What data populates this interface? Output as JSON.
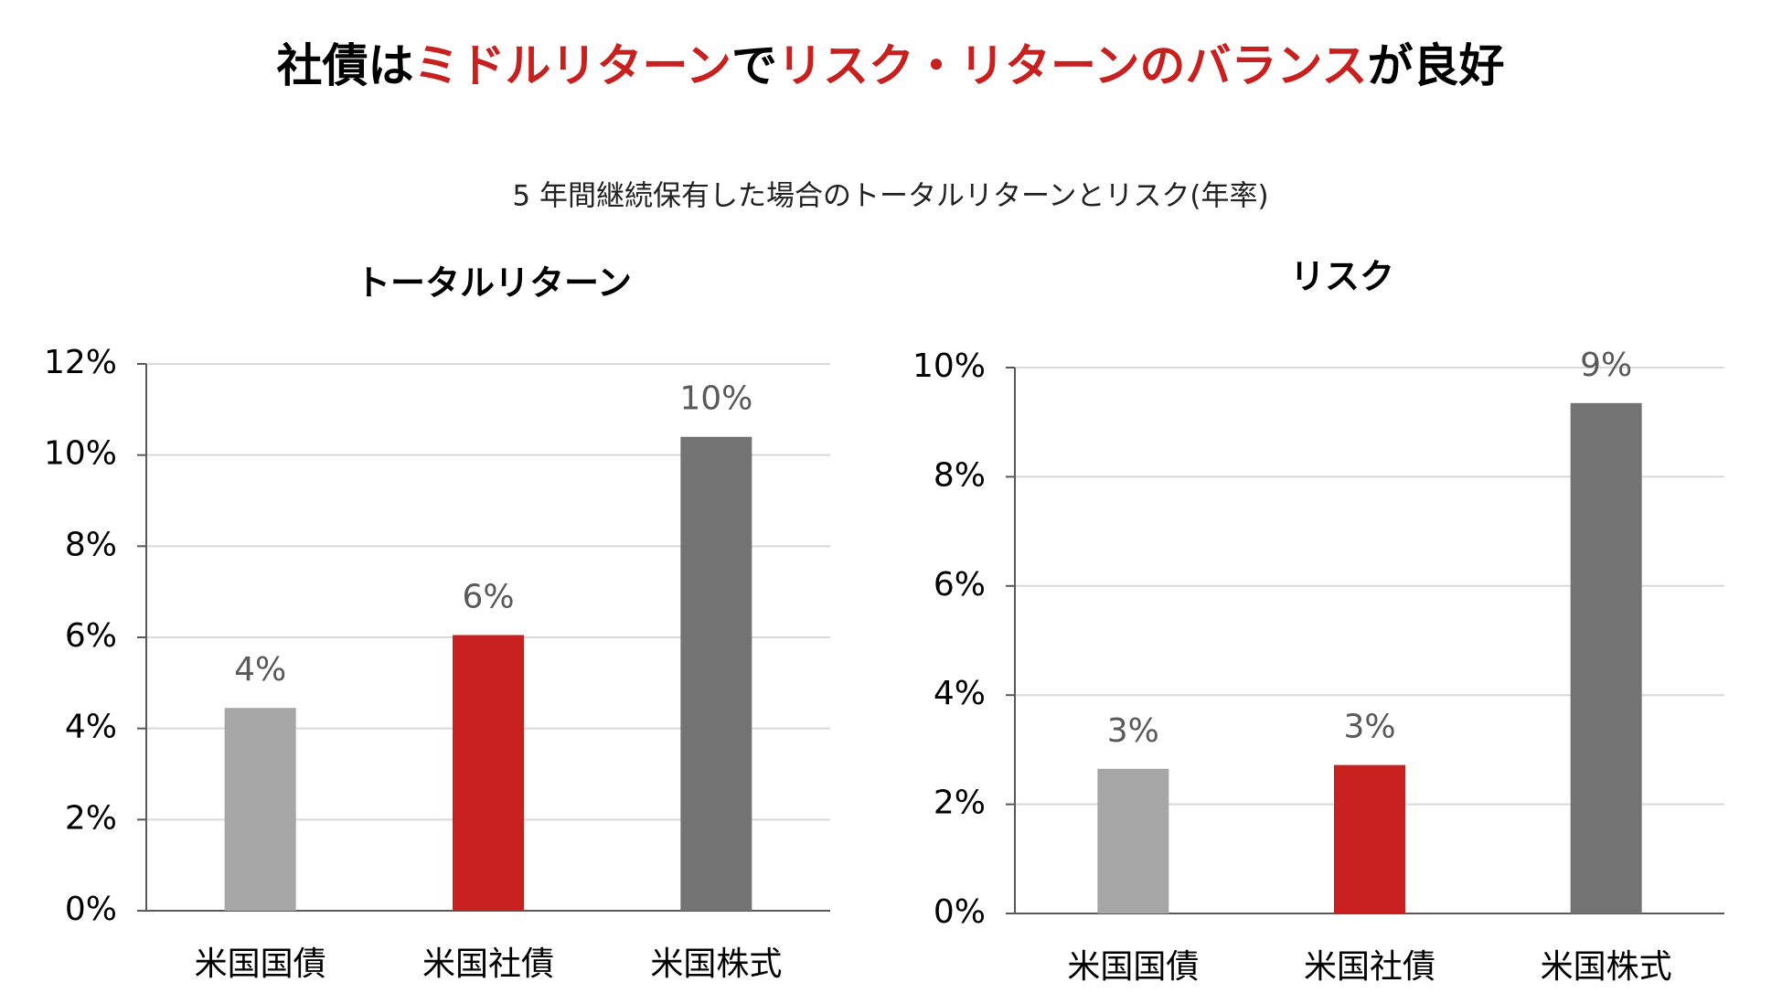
{
  "header": {
    "title_parts": [
      {
        "text": "社債は",
        "color": "#000000"
      },
      {
        "text": "ミドルリターン",
        "color": "#c8201f"
      },
      {
        "text": "で",
        "color": "#000000"
      },
      {
        "text": "リスク・リターンのバランス",
        "color": "#c8201f"
      },
      {
        "text": "が良好",
        "color": "#000000"
      }
    ],
    "subtitle": "5 年間継続保有した場合のトータルリターンとリスク(年率)"
  },
  "chart_data": [
    {
      "type": "bar",
      "title": "トータルリターン",
      "categories": [
        "米国国債",
        "米国社債",
        "米国株式"
      ],
      "values": [
        4.45,
        6.05,
        10.4
      ],
      "value_labels": [
        "4%",
        "6%",
        "10%"
      ],
      "colors": [
        "#a6a6a6",
        "#c8201f",
        "#737373"
      ],
      "ylim": [
        0,
        12
      ],
      "yticks": [
        {
          "value": 0,
          "label": "0%"
        },
        {
          "value": 2,
          "label": "2%"
        },
        {
          "value": 4,
          "label": "4%"
        },
        {
          "value": 6,
          "label": "6%"
        },
        {
          "value": 8,
          "label": "8%"
        },
        {
          "value": 10,
          "label": "10%"
        },
        {
          "value": 12,
          "label": "12%"
        }
      ],
      "grid": true
    },
    {
      "type": "bar",
      "title": "リスク",
      "categories": [
        "米国国債",
        "米国社債",
        "米国株式"
      ],
      "values": [
        2.65,
        2.72,
        9.35
      ],
      "value_labels": [
        "3%",
        "3%",
        "9%"
      ],
      "colors": [
        "#a6a6a6",
        "#c8201f",
        "#737373"
      ],
      "ylim": [
        0,
        10
      ],
      "yticks": [
        {
          "value": 0,
          "label": "0%"
        },
        {
          "value": 2,
          "label": "2%"
        },
        {
          "value": 4,
          "label": "4%"
        },
        {
          "value": 6,
          "label": "6%"
        },
        {
          "value": 8,
          "label": "8%"
        },
        {
          "value": 10,
          "label": "10%"
        }
      ],
      "grid": true
    }
  ]
}
